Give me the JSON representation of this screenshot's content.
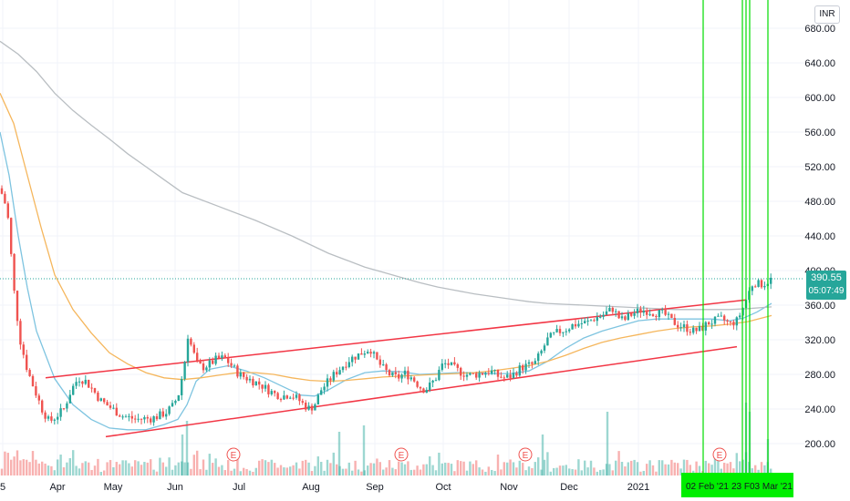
{
  "currency": "INR",
  "last_price": "390.55",
  "countdown": "05:07:49",
  "price_ticks": [
    "680.00",
    "640.00",
    "600.00",
    "560.00",
    "520.00",
    "480.00",
    "440.00",
    "400.00",
    "360.00",
    "320.00",
    "280.00",
    "240.00",
    "200.00"
  ],
  "time_ticks": [
    {
      "label": "5"
    },
    {
      "label": "Apr"
    },
    {
      "label": "May"
    },
    {
      "label": "Jun"
    },
    {
      "label": "Jul"
    },
    {
      "label": "Aug"
    },
    {
      "label": "Sep"
    },
    {
      "label": "Oct"
    },
    {
      "label": "Nov"
    },
    {
      "label": "Dec"
    },
    {
      "label": "2021"
    }
  ],
  "highlighted_dates": [
    "02 Feb '21",
    "23 F",
    "03 Mar '21"
  ],
  "earnings_marker_label": "E",
  "colors": {
    "up": "#26a69a",
    "down": "#ef5350",
    "channel": "#f23645",
    "ma_fast": "#7ec4e0",
    "ma_mid": "#f5b65c",
    "ma_slow": "#b9bec2",
    "highlight": "#00dd00",
    "badge": "#26a69a"
  },
  "chart_data": {
    "type": "candlestick",
    "y_range": [
      160,
      700
    ],
    "last_price": 390.55,
    "series": [
      {
        "kind": "price",
        "points": [
          [
            0,
            495
          ],
          [
            8,
            470
          ],
          [
            12,
            420
          ],
          [
            16,
            370
          ],
          [
            22,
            320
          ],
          [
            30,
            285
          ],
          [
            38,
            262
          ],
          [
            46,
            240
          ],
          [
            54,
            225
          ],
          [
            62,
            232
          ],
          [
            70,
            240
          ],
          [
            78,
            262
          ],
          [
            86,
            276
          ],
          [
            94,
            272
          ],
          [
            102,
            262
          ],
          [
            110,
            250
          ],
          [
            118,
            244
          ],
          [
            126,
            238
          ],
          [
            134,
            232
          ],
          [
            142,
            230
          ],
          [
            150,
            228
          ],
          [
            158,
            229
          ],
          [
            166,
            229
          ],
          [
            174,
            232
          ],
          [
            182,
            236
          ],
          [
            190,
            244
          ],
          [
            196,
            258
          ],
          [
            202,
            290
          ],
          [
            206,
            325
          ],
          [
            210,
            312
          ],
          [
            216,
            292
          ],
          [
            222,
            288
          ],
          [
            230,
            292
          ],
          [
            238,
            298
          ],
          [
            246,
            299
          ],
          [
            254,
            290
          ],
          [
            262,
            280
          ],
          [
            270,
            276
          ],
          [
            278,
            272
          ],
          [
            286,
            268
          ],
          [
            294,
            262
          ],
          [
            302,
            257
          ],
          [
            310,
            255
          ],
          [
            318,
            257
          ],
          [
            326,
            252
          ],
          [
            334,
            244
          ],
          [
            340,
            240
          ],
          [
            346,
            247
          ],
          [
            352,
            262
          ],
          [
            360,
            272
          ],
          [
            368,
            282
          ],
          [
            376,
            290
          ],
          [
            384,
            298
          ],
          [
            392,
            302
          ],
          [
            400,
            307
          ],
          [
            406,
            310
          ],
          [
            412,
            297
          ],
          [
            420,
            287
          ],
          [
            428,
            279
          ],
          [
            436,
            276
          ],
          [
            444,
            281
          ],
          [
            452,
            276
          ],
          [
            460,
            266
          ],
          [
            466,
            262
          ],
          [
            472,
            268
          ],
          [
            478,
            276
          ],
          [
            484,
            290
          ],
          [
            490,
            293
          ],
          [
            498,
            287
          ],
          [
            506,
            282
          ],
          [
            514,
            279
          ],
          [
            522,
            280
          ],
          [
            530,
            282
          ],
          [
            538,
            284
          ],
          [
            546,
            278
          ],
          [
            554,
            276
          ],
          [
            562,
            279
          ],
          [
            570,
            287
          ],
          [
            578,
            290
          ],
          [
            586,
            292
          ],
          [
            594,
            307
          ],
          [
            600,
            320
          ],
          [
            606,
            325
          ],
          [
            612,
            329
          ],
          [
            620,
            332
          ],
          [
            628,
            337
          ],
          [
            636,
            339
          ],
          [
            644,
            340
          ],
          [
            652,
            345
          ],
          [
            660,
            348
          ],
          [
            666,
            352
          ],
          [
            672,
            356
          ],
          [
            678,
            346
          ],
          [
            684,
            342
          ],
          [
            690,
            348
          ],
          [
            696,
            351
          ],
          [
            702,
            354
          ],
          [
            708,
            354
          ],
          [
            714,
            352
          ],
          [
            720,
            351
          ],
          [
            728,
            350
          ],
          [
            736,
            342
          ],
          [
            744,
            337
          ],
          [
            752,
            334
          ],
          [
            760,
            330
          ],
          [
            768,
            332
          ],
          [
            776,
            339
          ],
          [
            784,
            342
          ],
          [
            792,
            344
          ],
          [
            800,
            338
          ],
          [
            808,
            342
          ],
          [
            814,
            355
          ],
          [
            820,
            372
          ],
          [
            826,
            387
          ],
          [
            832,
            384
          ],
          [
            838,
            385
          ],
          [
            844,
            389
          ],
          [
            848,
            391
          ]
        ]
      },
      {
        "kind": "ma",
        "name": "",
        "points": [
          [
            0,
            560
          ],
          [
            10,
            510
          ],
          [
            20,
            440
          ],
          [
            30,
            380
          ],
          [
            40,
            330
          ],
          [
            60,
            275
          ],
          [
            80,
            245
          ],
          [
            100,
            228
          ],
          [
            120,
            218
          ],
          [
            140,
            216
          ],
          [
            160,
            216
          ],
          [
            180,
            222
          ],
          [
            195,
            228
          ],
          [
            205,
            245
          ],
          [
            215,
            272
          ],
          [
            230,
            286
          ],
          [
            250,
            290
          ],
          [
            270,
            284
          ],
          [
            290,
            276
          ],
          [
            310,
            266
          ],
          [
            330,
            256
          ],
          [
            345,
            255
          ],
          [
            360,
            262
          ],
          [
            380,
            274
          ],
          [
            400,
            282
          ],
          [
            420,
            284
          ],
          [
            440,
            283
          ],
          [
            460,
            280
          ],
          [
            480,
            281
          ],
          [
            500,
            282
          ],
          [
            520,
            282
          ],
          [
            540,
            281
          ],
          [
            560,
            281
          ],
          [
            580,
            284
          ],
          [
            600,
            295
          ],
          [
            620,
            310
          ],
          [
            640,
            322
          ],
          [
            660,
            330
          ],
          [
            680,
            336
          ],
          [
            700,
            342
          ],
          [
            720,
            344
          ],
          [
            740,
            344
          ],
          [
            760,
            344
          ],
          [
            780,
            344
          ],
          [
            800,
            342
          ],
          [
            815,
            345
          ],
          [
            830,
            352
          ],
          [
            846,
            362
          ]
        ]
      },
      {
        "kind": "ma",
        "name": "",
        "points": [
          [
            0,
            605
          ],
          [
            15,
            570
          ],
          [
            30,
            510
          ],
          [
            45,
            450
          ],
          [
            60,
            395
          ],
          [
            80,
            355
          ],
          [
            100,
            328
          ],
          [
            120,
            305
          ],
          [
            140,
            292
          ],
          [
            160,
            282
          ],
          [
            180,
            276
          ],
          [
            200,
            274
          ],
          [
            220,
            276
          ],
          [
            240,
            279
          ],
          [
            260,
            282
          ],
          [
            280,
            282
          ],
          [
            300,
            280
          ],
          [
            320,
            276
          ],
          [
            340,
            273
          ],
          [
            360,
            272
          ],
          [
            380,
            273
          ],
          [
            400,
            275
          ],
          [
            420,
            277
          ],
          [
            440,
            278
          ],
          [
            460,
            279
          ],
          [
            480,
            280
          ],
          [
            500,
            281
          ],
          [
            520,
            282
          ],
          [
            540,
            284
          ],
          [
            560,
            287
          ],
          [
            580,
            290
          ],
          [
            600,
            295
          ],
          [
            620,
            302
          ],
          [
            640,
            310
          ],
          [
            660,
            317
          ],
          [
            680,
            322
          ],
          [
            700,
            326
          ],
          [
            720,
            330
          ],
          [
            740,
            333
          ],
          [
            760,
            335
          ],
          [
            780,
            336
          ],
          [
            800,
            338
          ],
          [
            820,
            341
          ],
          [
            846,
            348
          ]
        ]
      },
      {
        "kind": "ma",
        "name": "",
        "points": [
          [
            0,
            665
          ],
          [
            20,
            650
          ],
          [
            40,
            630
          ],
          [
            60,
            605
          ],
          [
            80,
            585
          ],
          [
            100,
            568
          ],
          [
            120,
            552
          ],
          [
            140,
            535
          ],
          [
            160,
            520
          ],
          [
            180,
            505
          ],
          [
            200,
            490
          ],
          [
            240,
            474
          ],
          [
            280,
            458
          ],
          [
            320,
            440
          ],
          [
            360,
            420
          ],
          [
            380,
            412
          ],
          [
            400,
            404
          ],
          [
            420,
            398
          ],
          [
            440,
            392
          ],
          [
            460,
            386
          ],
          [
            480,
            381
          ],
          [
            500,
            377
          ],
          [
            520,
            373
          ],
          [
            540,
            370
          ],
          [
            560,
            367
          ],
          [
            580,
            364
          ],
          [
            600,
            362
          ],
          [
            620,
            361
          ],
          [
            640,
            360
          ],
          [
            660,
            359
          ],
          [
            680,
            358
          ],
          [
            700,
            357
          ],
          [
            720,
            356
          ],
          [
            740,
            355
          ],
          [
            760,
            355
          ],
          [
            780,
            355
          ],
          [
            800,
            355
          ],
          [
            820,
            356
          ],
          [
            846,
            358
          ]
        ]
      },
      {
        "kind": "trendline",
        "points": [
          [
            50,
            276
          ],
          [
            818,
            366
          ]
        ]
      },
      {
        "kind": "trendline",
        "points": [
          [
            116,
            208
          ],
          [
            808,
            312
          ]
        ]
      }
    ],
    "earnings_markers_x": [
      256,
      440,
      576,
      789
    ],
    "highlight_lines_x": [
      771,
      814,
      818,
      822,
      842
    ]
  }
}
